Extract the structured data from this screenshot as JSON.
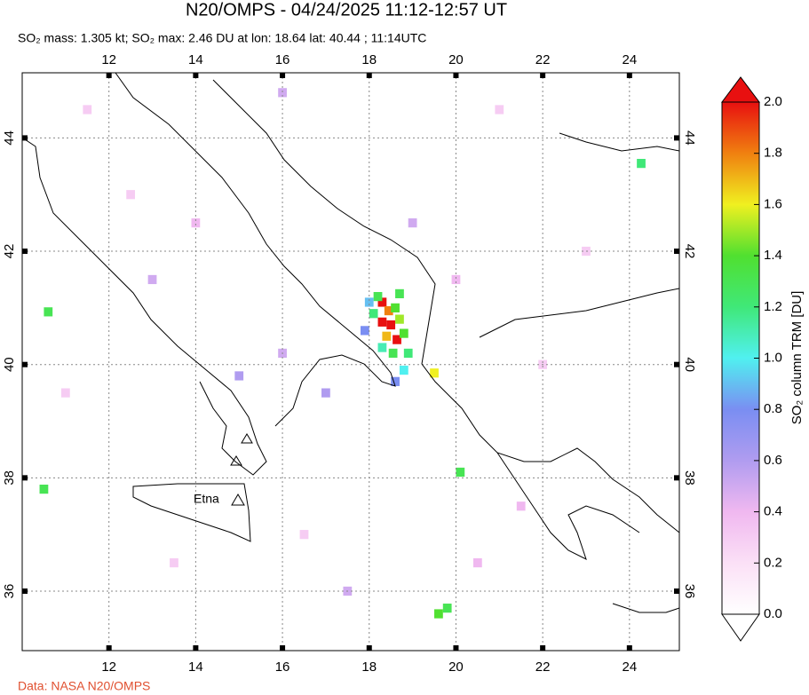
{
  "header": {
    "title": "N20/OMPS - 04/24/2025 11:12-12:57 UT",
    "subtitle": "SO₂ mass: 1.305 kt; SO₂ max: 2.46 DU at lon: 18.64 lat: 40.44 ; 11:14UTC"
  },
  "map": {
    "lonlim": [
      10,
      25.15
    ],
    "latlim": [
      34.95,
      45.15
    ],
    "lon_ticks": [
      12,
      14,
      16,
      18,
      20,
      22,
      24
    ],
    "lat_ticks": [
      36,
      38,
      40,
      42,
      44
    ],
    "volcano": "Etna",
    "pixels": [
      {
        "lon": 18.3,
        "lat": 41.1,
        "value": 2.1
      },
      {
        "lon": 18.45,
        "lat": 40.95,
        "value": 1.8
      },
      {
        "lon": 18.5,
        "lat": 40.7,
        "value": 2.3
      },
      {
        "lon": 18.64,
        "lat": 40.44,
        "value": 2.46
      },
      {
        "lon": 18.3,
        "lat": 40.75,
        "value": 2.0
      },
      {
        "lon": 18.6,
        "lat": 41.0,
        "value": 1.4
      },
      {
        "lon": 18.2,
        "lat": 41.2,
        "value": 1.3
      },
      {
        "lon": 18.7,
        "lat": 40.8,
        "value": 1.5
      },
      {
        "lon": 18.8,
        "lat": 40.55,
        "value": 1.4
      },
      {
        "lon": 18.4,
        "lat": 40.5,
        "value": 1.7
      },
      {
        "lon": 18.55,
        "lat": 40.2,
        "value": 1.3
      },
      {
        "lon": 18.9,
        "lat": 40.2,
        "value": 1.2
      },
      {
        "lon": 18.3,
        "lat": 40.3,
        "value": 1.1
      },
      {
        "lon": 18.1,
        "lat": 40.9,
        "value": 1.2
      },
      {
        "lon": 18.7,
        "lat": 41.25,
        "value": 1.3
      },
      {
        "lon": 18.0,
        "lat": 41.1,
        "value": 0.9
      },
      {
        "lon": 18.8,
        "lat": 39.9,
        "value": 1.0
      },
      {
        "lon": 19.5,
        "lat": 39.85,
        "value": 1.6
      },
      {
        "lon": 17.9,
        "lat": 40.6,
        "value": 0.8
      },
      {
        "lon": 18.6,
        "lat": 39.7,
        "value": 0.8
      },
      {
        "lon": 17.0,
        "lat": 39.5,
        "value": 0.6
      },
      {
        "lon": 16.0,
        "lat": 40.2,
        "value": 0.5
      },
      {
        "lon": 19.0,
        "lat": 42.5,
        "value": 0.5
      },
      {
        "lon": 20.0,
        "lat": 41.5,
        "value": 0.4
      },
      {
        "lon": 15.0,
        "lat": 39.8,
        "value": 0.6
      },
      {
        "lon": 13.0,
        "lat": 41.5,
        "value": 0.5
      },
      {
        "lon": 11.0,
        "lat": 39.5,
        "value": 0.3
      },
      {
        "lon": 21.5,
        "lat": 37.5,
        "value": 0.4
      },
      {
        "lon": 19.8,
        "lat": 35.7,
        "value": 1.3
      },
      {
        "lon": 19.6,
        "lat": 35.6,
        "value": 1.4
      },
      {
        "lon": 20.1,
        "lat": 38.1,
        "value": 1.3
      },
      {
        "lon": 24.27,
        "lat": 43.55,
        "value": 1.2
      },
      {
        "lon": 10.6,
        "lat": 40.93,
        "value": 1.3
      },
      {
        "lon": 10.5,
        "lat": 37.8,
        "value": 1.3
      },
      {
        "lon": 12.5,
        "lat": 43.0,
        "value": 0.3
      },
      {
        "lon": 14.0,
        "lat": 42.5,
        "value": 0.4
      },
      {
        "lon": 16.5,
        "lat": 37.0,
        "value": 0.3
      },
      {
        "lon": 22.0,
        "lat": 40.0,
        "value": 0.3
      },
      {
        "lon": 23.0,
        "lat": 42.0,
        "value": 0.3
      },
      {
        "lon": 20.5,
        "lat": 36.5,
        "value": 0.4
      },
      {
        "lon": 17.5,
        "lat": 36.0,
        "value": 0.5
      },
      {
        "lon": 13.5,
        "lat": 36.5,
        "value": 0.3
      },
      {
        "lon": 21.0,
        "lat": 44.5,
        "value": 0.3
      },
      {
        "lon": 16.0,
        "lat": 44.8,
        "value": 0.5
      },
      {
        "lon": 11.5,
        "lat": 44.5,
        "value": 0.3
      }
    ]
  },
  "colorbar": {
    "label": "SO₂ column TRM [DU]",
    "range": [
      0,
      2
    ],
    "ticks": [
      {
        "value": 0,
        "label": "0.0"
      },
      {
        "value": 0.2,
        "label": "0.2"
      },
      {
        "value": 0.4,
        "label": "0.4"
      },
      {
        "value": 0.6,
        "label": "0.6"
      },
      {
        "value": 0.8,
        "label": "0.8"
      },
      {
        "value": 1,
        "label": "1.0"
      },
      {
        "value": 1.2,
        "label": "1.2"
      },
      {
        "value": 1.4,
        "label": "1.4"
      },
      {
        "value": 1.6,
        "label": "1.6"
      },
      {
        "value": 1.8,
        "label": "1.8"
      },
      {
        "value": 2,
        "label": "2.0"
      }
    ]
  },
  "footer": "Data: NASA N20/OMPS"
}
